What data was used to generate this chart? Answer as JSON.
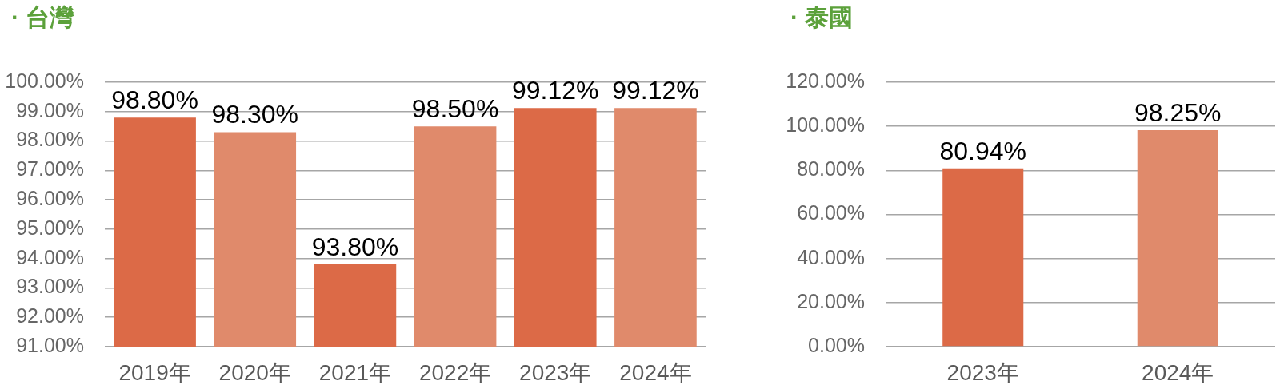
{
  "chart_data": [
    {
      "type": "bar",
      "title": "· 台灣",
      "categories": [
        "2019年",
        "2020年",
        "2021年",
        "2022年",
        "2023年",
        "2024年"
      ],
      "values": [
        98.8,
        98.3,
        93.8,
        98.5,
        99.12,
        99.12
      ],
      "colors": [
        "#dc6a47",
        "#e08a6b",
        "#dc6a47",
        "#e08a6b",
        "#dc6a47",
        "#e08a6b"
      ],
      "value_labels": [
        "98.80%",
        "98.30%",
        "93.80%",
        "98.50%",
        "99.12%",
        "99.12%"
      ],
      "ylim": [
        91,
        100
      ],
      "yticks": [
        {
          "value": 91,
          "label": "91.00%"
        },
        {
          "value": 92,
          "label": "92.00%"
        },
        {
          "value": 93,
          "label": "93.00%"
        },
        {
          "value": 94,
          "label": "94.00%"
        },
        {
          "value": 95,
          "label": "95.00%"
        },
        {
          "value": 96,
          "label": "96.00%"
        },
        {
          "value": 97,
          "label": "97.00%"
        },
        {
          "value": 98,
          "label": "98.00%"
        },
        {
          "value": 99,
          "label": "99.00%"
        },
        {
          "value": 100,
          "label": "100.00%"
        }
      ],
      "grid": "y"
    },
    {
      "type": "bar",
      "title": "· 泰國",
      "categories": [
        "2023年",
        "2024年"
      ],
      "values": [
        80.94,
        98.25
      ],
      "colors": [
        "#dc6a47",
        "#e08a6b"
      ],
      "value_labels": [
        "80.94%",
        "98.25%"
      ],
      "ylim": [
        0,
        120
      ],
      "yticks": [
        {
          "value": 0,
          "label": "0.00%"
        },
        {
          "value": 20,
          "label": "20.00%"
        },
        {
          "value": 40,
          "label": "40.00%"
        },
        {
          "value": 60,
          "label": "60.00%"
        },
        {
          "value": 80,
          "label": "80.00%"
        },
        {
          "value": 100,
          "label": "100.00%"
        },
        {
          "value": 120,
          "label": "120.00%"
        }
      ],
      "grid": "y"
    }
  ]
}
